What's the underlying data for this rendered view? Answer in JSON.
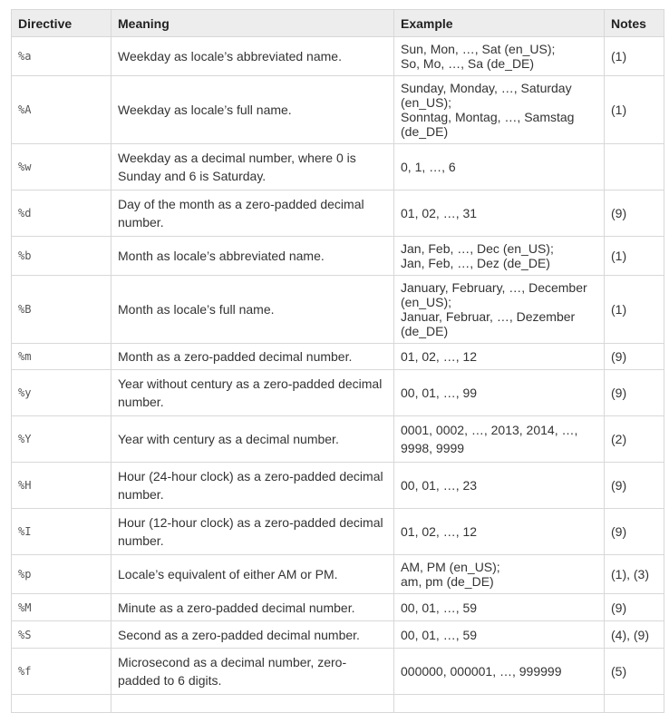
{
  "table": {
    "headers": [
      "Directive",
      "Meaning",
      "Example",
      "Notes"
    ],
    "rows": [
      {
        "directive": "%a",
        "meaning": "Weekday as locale’s abbreviated name.",
        "example": [
          "Sun, Mon, …, Sat (en_US);",
          "So, Mo, …, Sa (de_DE)"
        ],
        "notes": "(1)"
      },
      {
        "directive": "%A",
        "meaning": "Weekday as locale’s full name.",
        "example": [
          "Sunday, Monday, …, Saturday",
          "(en_US);",
          "Sonntag, Montag, …, Samstag",
          "(de_DE)"
        ],
        "notes": "(1)"
      },
      {
        "directive": "%w",
        "meaning": "Weekday as a decimal number, where 0 is Sunday and 6 is Saturday.",
        "example": [
          "0, 1, …, 6"
        ],
        "notes": ""
      },
      {
        "directive": "%d",
        "meaning": "Day of the month as a zero-padded decimal number.",
        "example": [
          "01, 02, …, 31"
        ],
        "notes": "(9)"
      },
      {
        "directive": "%b",
        "meaning": "Month as locale’s abbreviated name.",
        "example": [
          "Jan, Feb, …, Dec (en_US);",
          "Jan, Feb, …, Dez (de_DE)"
        ],
        "notes": "(1)"
      },
      {
        "directive": "%B",
        "meaning": "Month as locale’s full name.",
        "example": [
          "January, February, …, December",
          "(en_US);",
          "Januar, Februar, …, Dezember",
          "(de_DE)"
        ],
        "notes": "(1)"
      },
      {
        "directive": "%m",
        "meaning": "Month as a zero-padded decimal number.",
        "example": [
          "01, 02, …, 12"
        ],
        "notes": "(9)"
      },
      {
        "directive": "%y",
        "meaning": "Year without century as a zero-padded decimal number.",
        "example": [
          "00, 01, …, 99"
        ],
        "notes": "(9)"
      },
      {
        "directive": "%Y",
        "meaning": "Year with century as a decimal number.",
        "example": [
          "0001, 0002, …, 2013, 2014, …,",
          "9998, 9999"
        ],
        "notes": "(2)"
      },
      {
        "directive": "%H",
        "meaning": "Hour (24-hour clock) as a zero-padded decimal number.",
        "example": [
          "00, 01, …, 23"
        ],
        "notes": "(9)"
      },
      {
        "directive": "%I",
        "meaning": "Hour (12-hour clock) as a zero-padded decimal number.",
        "example": [
          "01, 02, …, 12"
        ],
        "notes": "(9)"
      },
      {
        "directive": "%p",
        "meaning": "Locale’s equivalent of either AM or PM.",
        "example": [
          "AM, PM (en_US);",
          "am, pm (de_DE)"
        ],
        "notes": "(1), (3)"
      },
      {
        "directive": "%M",
        "meaning": "Minute as a zero-padded decimal number.",
        "example": [
          "00, 01, …, 59"
        ],
        "notes": "(9)"
      },
      {
        "directive": "%S",
        "meaning": "Second as a zero-padded decimal number.",
        "example": [
          "00, 01, …, 59"
        ],
        "notes": "(4), (9)"
      },
      {
        "directive": "%f",
        "meaning": "Microsecond as a decimal number, zero-padded to 6 digits.",
        "example": [
          "000000, 000001, …, 999999"
        ],
        "notes": "(5)"
      }
    ]
  }
}
